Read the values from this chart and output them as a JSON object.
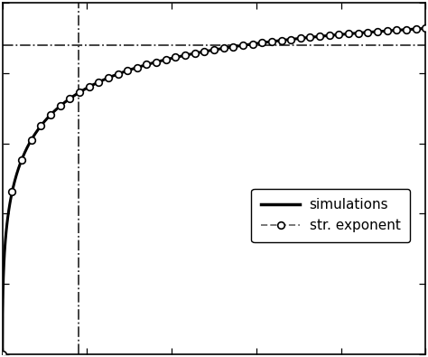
{
  "title": "",
  "xlabel": "",
  "ylabel": "",
  "xlim": [
    0,
    1.0
  ],
  "ylim": [
    0,
    1.0
  ],
  "background_color": "#ffffff",
  "solid_line_color": "#000000",
  "dashed_line_color": "#777777",
  "ref_line_color": "#333333",
  "legend_entries": [
    "simulations",
    "str. exponent"
  ],
  "beta": 0.38,
  "tau": 0.08,
  "asymptote": 1.0,
  "vline_x": 0.18,
  "hline_y": 0.88,
  "num_circle_markers": 45,
  "legend_fontsize": 11,
  "linewidth_solid": 2.2,
  "linewidth_dashed": 1.4
}
